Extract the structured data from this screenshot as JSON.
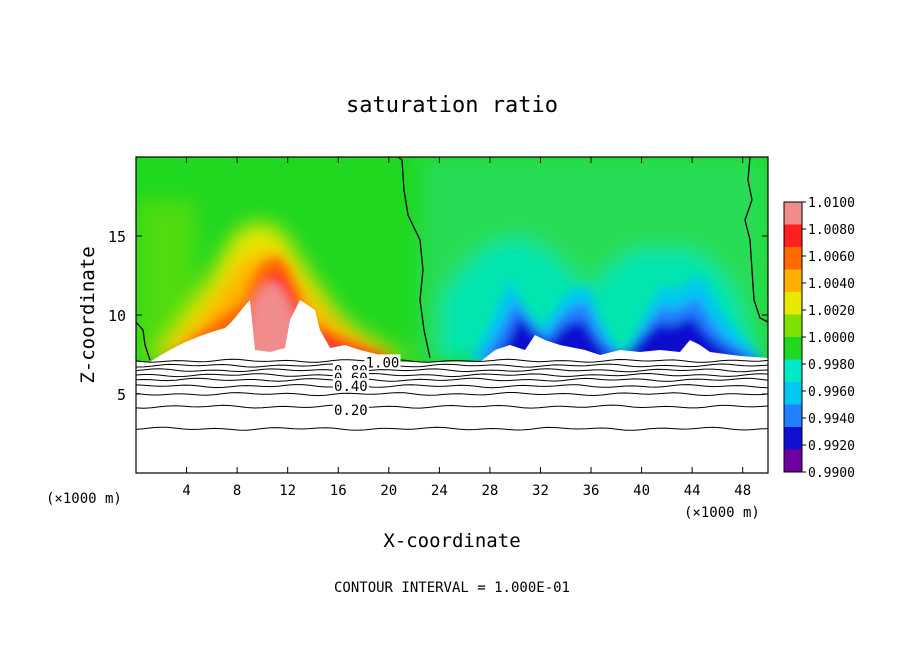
{
  "chart_data": {
    "type": "heatmap",
    "title": "saturation ratio",
    "xlabel": "X-coordinate",
    "ylabel": "Z-coordinate",
    "x_unit_left": "(×1000 m)",
    "x_unit_right": "(×1000 m)",
    "xlim": [
      0,
      50
    ],
    "ylim": [
      0,
      20
    ],
    "x_ticks": [
      4,
      8,
      12,
      16,
      20,
      24,
      28,
      32,
      36,
      40,
      44,
      48
    ],
    "y_ticks": [
      5,
      10,
      15
    ],
    "footer": "CONTOUR INTERVAL = 1.000E-01",
    "colorbar": {
      "levels": [
        "1.0100",
        "1.0080",
        "1.0060",
        "1.0040",
        "1.0020",
        "1.0000",
        "0.9980",
        "0.9960",
        "0.9940",
        "0.9920",
        "0.9900"
      ],
      "colors": [
        "#f08c8c",
        "#ff2020",
        "#ff6a00",
        "#ffb000",
        "#e8e800",
        "#80e000",
        "#20d820",
        "#00e8c8",
        "#00c8f0",
        "#2080ff",
        "#1010d0",
        "#7000a0"
      ]
    },
    "contour_labels": [
      {
        "text": "1.00",
        "x": 19.5,
        "y": 7.0
      },
      {
        "text": "0.80",
        "x": 17.0,
        "y": 6.5
      },
      {
        "text": "0.60",
        "x": 17.0,
        "y": 6.0
      },
      {
        "text": "0.40",
        "x": 17.0,
        "y": 5.5
      },
      {
        "text": "0.20",
        "x": 17.0,
        "y": 4.0
      }
    ],
    "contours": [
      7.1,
      6.8,
      6.5,
      6.2,
      5.9,
      5.5,
      5.0,
      4.2,
      2.8
    ]
  }
}
